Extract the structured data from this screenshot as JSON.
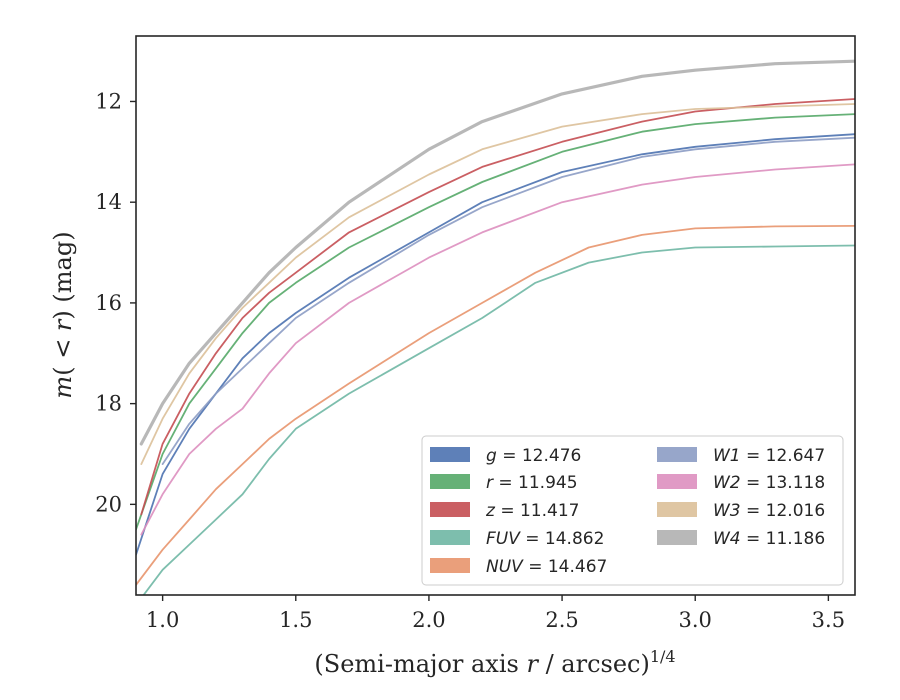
{
  "chart_data": {
    "type": "line",
    "xlabel": "(Semi-major axis r / arcsec)^{1/4}",
    "ylabel": "m(< r) (mag)",
    "xlim": [
      0.9,
      3.6
    ],
    "ylim": [
      21.8,
      10.7
    ],
    "y_inverted": true,
    "x_ticks": [
      1.0,
      1.5,
      2.0,
      2.5,
      3.0,
      3.5
    ],
    "x_tick_labels": [
      "1.0",
      "1.5",
      "2.0",
      "2.5",
      "3.0",
      "3.5"
    ],
    "y_ticks": [
      12,
      14,
      16,
      18,
      20
    ],
    "y_tick_labels": [
      "12",
      "14",
      "16",
      "18",
      "20"
    ],
    "grid": false,
    "legend_position": "lower-right",
    "legend_columns": 2,
    "series": [
      {
        "name": "g",
        "legend_var": "g",
        "legend_value": "= 12.476",
        "color": "#4c72b0",
        "x": [
          0.9,
          1.0,
          1.1,
          1.2,
          1.3,
          1.4,
          1.5,
          1.7,
          2.0,
          2.2,
          2.5,
          2.8,
          3.0,
          3.3,
          3.6
        ],
        "y": [
          21.0,
          19.4,
          18.5,
          17.8,
          17.1,
          16.6,
          16.2,
          15.5,
          14.6,
          14.0,
          13.4,
          13.05,
          12.9,
          12.75,
          12.65
        ]
      },
      {
        "name": "r",
        "legend_var": "r",
        "legend_value": "= 11.945",
        "color": "#55a868",
        "x": [
          0.9,
          1.0,
          1.1,
          1.2,
          1.3,
          1.4,
          1.5,
          1.7,
          2.0,
          2.2,
          2.5,
          2.8,
          3.0,
          3.3,
          3.6
        ],
        "y": [
          20.5,
          19.0,
          18.0,
          17.3,
          16.6,
          16.0,
          15.6,
          14.9,
          14.1,
          13.6,
          13.0,
          12.6,
          12.45,
          12.32,
          12.25
        ]
      },
      {
        "name": "z",
        "legend_var": "z",
        "legend_value": "= 11.417",
        "color": "#c44e52",
        "x": [
          0.92,
          1.0,
          1.1,
          1.2,
          1.3,
          1.4,
          1.5,
          1.7,
          2.0,
          2.2,
          2.5,
          2.8,
          3.0,
          3.3,
          3.6
        ],
        "y": [
          20.2,
          18.8,
          17.8,
          17.0,
          16.3,
          15.8,
          15.4,
          14.6,
          13.8,
          13.3,
          12.8,
          12.4,
          12.2,
          12.05,
          11.95
        ]
      },
      {
        "name": "FUV",
        "legend_var": "FUV",
        "legend_value": "= 14.862",
        "color": "#6fb7a4",
        "x": [
          0.9,
          1.0,
          1.1,
          1.2,
          1.3,
          1.4,
          1.5,
          1.7,
          2.0,
          2.2,
          2.4,
          2.6,
          2.8,
          3.0,
          3.3,
          3.6
        ],
        "y": [
          22.0,
          21.3,
          20.8,
          20.3,
          19.8,
          19.1,
          18.5,
          17.8,
          16.9,
          16.3,
          15.6,
          15.2,
          15.0,
          14.9,
          14.88,
          14.86
        ]
      },
      {
        "name": "NUV",
        "legend_var": "NUV",
        "legend_value": "= 14.467",
        "color": "#e8956d",
        "x": [
          0.9,
          1.0,
          1.1,
          1.2,
          1.3,
          1.4,
          1.5,
          1.7,
          2.0,
          2.2,
          2.4,
          2.6,
          2.8,
          3.0,
          3.3,
          3.6
        ],
        "y": [
          21.6,
          20.9,
          20.3,
          19.7,
          19.2,
          18.7,
          18.3,
          17.6,
          16.6,
          16.0,
          15.4,
          14.9,
          14.65,
          14.52,
          14.48,
          14.47
        ]
      },
      {
        "name": "W1",
        "legend_var": "W1",
        "legend_value": "= 12.647",
        "color": "#8c9cc4",
        "x": [
          1.0,
          1.1,
          1.2,
          1.3,
          1.4,
          1.5,
          1.7,
          2.0,
          2.2,
          2.5,
          2.8,
          3.0,
          3.3,
          3.6
        ],
        "y": [
          19.2,
          18.4,
          17.8,
          17.3,
          16.8,
          16.3,
          15.6,
          14.65,
          14.1,
          13.5,
          13.1,
          12.95,
          12.8,
          12.72
        ]
      },
      {
        "name": "W2",
        "legend_var": "W2",
        "legend_value": "= 13.118",
        "color": "#dd8fbf",
        "x": [
          0.92,
          1.0,
          1.1,
          1.2,
          1.3,
          1.4,
          1.5,
          1.7,
          2.0,
          2.2,
          2.5,
          2.8,
          3.0,
          3.3,
          3.6
        ],
        "y": [
          20.6,
          19.8,
          19.0,
          18.5,
          18.1,
          17.4,
          16.8,
          16.0,
          15.1,
          14.6,
          14.0,
          13.65,
          13.5,
          13.35,
          13.25
        ]
      },
      {
        "name": "W3",
        "legend_var": "W3",
        "legend_value": "= 12.016",
        "color": "#dcc099",
        "x": [
          0.92,
          1.0,
          1.1,
          1.2,
          1.3,
          1.4,
          1.5,
          1.7,
          2.0,
          2.2,
          2.5,
          2.8,
          3.0,
          3.3,
          3.6
        ],
        "y": [
          19.2,
          18.3,
          17.4,
          16.7,
          16.1,
          15.6,
          15.1,
          14.3,
          13.45,
          12.95,
          12.5,
          12.25,
          12.15,
          12.1,
          12.05
        ]
      },
      {
        "name": "W4",
        "legend_var": "W4",
        "legend_value": "= 11.186",
        "color": "#b0b0b0",
        "x": [
          0.92,
          1.0,
          1.1,
          1.2,
          1.3,
          1.4,
          1.5,
          1.7,
          2.0,
          2.2,
          2.5,
          2.8,
          3.0,
          3.3,
          3.6
        ],
        "y": [
          18.8,
          18.0,
          17.2,
          16.6,
          16.0,
          15.4,
          14.9,
          14.0,
          12.95,
          12.4,
          11.85,
          11.5,
          11.38,
          11.25,
          11.2
        ]
      }
    ]
  }
}
